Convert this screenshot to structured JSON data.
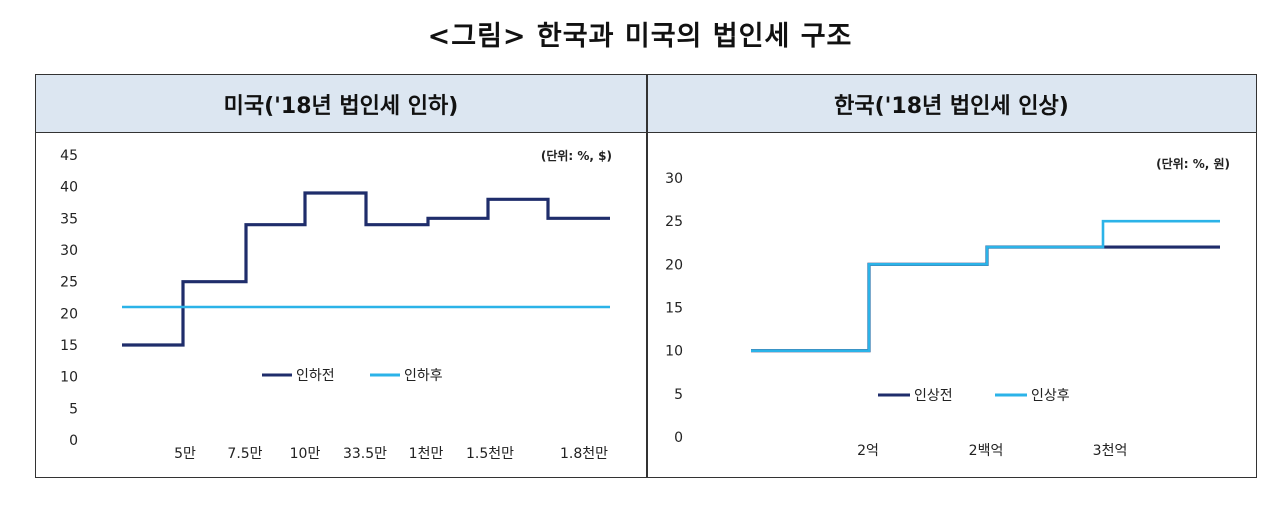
{
  "figure_title": "<그림> 한국과 미국의 법인세 구조",
  "panels": {
    "left_header": "미국('18년 법인세 인하)",
    "right_header": "한국('18년 법인세 인상)"
  },
  "colors": {
    "series_before": "#1f2d6b",
    "series_after": "#2bb3e8",
    "header_bg": "#dce6f1"
  },
  "chart_data": [
    {
      "type": "line",
      "step": true,
      "unit_note": "(단위: %, $)",
      "x_tick_labels": [
        "5만",
        "7.5만",
        "10만",
        "33.5만",
        "1천만",
        "1.5천만",
        "1.8천만"
      ],
      "ylim": [
        0,
        45
      ],
      "y_ticks": [
        0,
        5,
        10,
        15,
        20,
        25,
        30,
        35,
        40,
        45
      ],
      "grid": false,
      "legend_position": "center",
      "series": [
        {
          "name": "인하전",
          "values": [
            15,
            25,
            34,
            39,
            34,
            35,
            38,
            35
          ]
        },
        {
          "name": "인하후",
          "values": [
            21,
            21,
            21,
            21,
            21,
            21,
            21,
            21
          ]
        }
      ]
    },
    {
      "type": "line",
      "step": true,
      "unit_note": "(단위: %, 원)",
      "x_tick_labels": [
        "2억",
        "2백억",
        "3천억"
      ],
      "ylim": [
        0,
        30
      ],
      "y_ticks": [
        0,
        5,
        10,
        15,
        20,
        25,
        30
      ],
      "grid": false,
      "legend_position": "bottom",
      "series": [
        {
          "name": "인상전",
          "values": [
            10,
            20,
            22,
            22
          ]
        },
        {
          "name": "인상후",
          "values": [
            10,
            20,
            22,
            25
          ]
        }
      ]
    }
  ]
}
